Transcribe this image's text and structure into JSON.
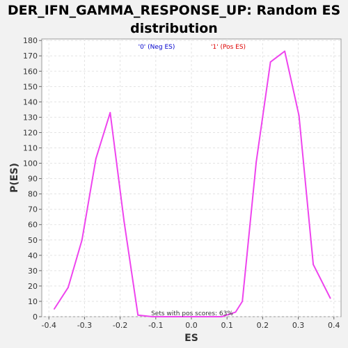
{
  "chart_data": {
    "type": "line",
    "title": "DER_IFN_GAMMA_RESPONSE_UP: Random ES\ndistribution",
    "xlabel": "ES",
    "ylabel": "P(ES)",
    "xlim": [
      -0.42,
      0.42
    ],
    "ylim": [
      0,
      181
    ],
    "xticks": [
      -0.4,
      -0.3,
      -0.2,
      -0.1,
      0.0,
      0.1,
      0.2,
      0.3,
      0.4
    ],
    "xtick_labels": [
      "-0.4",
      "-0.3",
      "-0.2",
      "-0.1",
      "0.0",
      "0.1",
      "0.2",
      "0.3",
      "0.4"
    ],
    "yticks": [
      0,
      10,
      20,
      30,
      40,
      50,
      60,
      70,
      80,
      90,
      100,
      110,
      120,
      130,
      140,
      150,
      160,
      170,
      180
    ],
    "grid": true,
    "legend": [
      {
        "label": "'0' (Neg ES)",
        "color": "#0000cc"
      },
      {
        "label": "'1' (Pos ES)",
        "color": "#dd0000"
      }
    ],
    "annotation": "Sets with pos scores: 63%",
    "line_color": "#ee44ee",
    "series": [
      {
        "x": [
          -0.385,
          -0.346,
          -0.307,
          -0.268,
          -0.228,
          -0.189,
          -0.15,
          -0.11,
          -0.071,
          -0.032,
          0.007,
          0.046,
          0.085,
          0.124,
          0.143,
          0.182,
          0.222,
          0.262,
          0.302,
          0.342,
          0.39
        ],
        "y": [
          5,
          19,
          50,
          103,
          133,
          62,
          1,
          0,
          0,
          0,
          0,
          0,
          0,
          3,
          10,
          101,
          166,
          173,
          131,
          34,
          12
        ]
      }
    ]
  }
}
